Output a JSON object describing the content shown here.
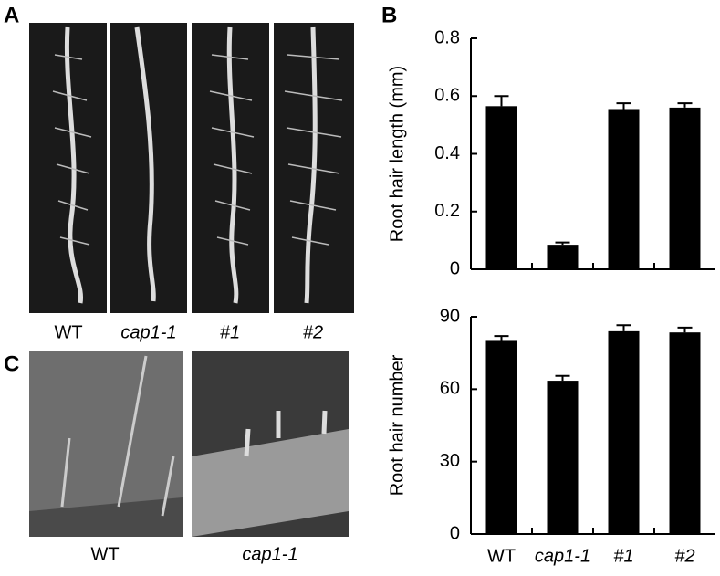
{
  "panels": [
    {
      "label": "A",
      "captions": [
        "WT",
        "cap1-1",
        "#1",
        "#2"
      ]
    },
    {
      "label": "B"
    },
    {
      "label": "C",
      "captions": [
        "WT",
        "cap1-1"
      ]
    }
  ],
  "chart_data": [
    {
      "type": "bar",
      "ylabel": "Root hair length (mm)",
      "categories": [
        null,
        null,
        null,
        null
      ],
      "values": [
        0.565,
        0.085,
        0.555,
        0.56
      ],
      "errors": [
        0.035,
        0.008,
        0.02,
        0.015
      ],
      "color": "#000000",
      "ylim": [
        0,
        0.8
      ],
      "yticks": [
        0,
        0.2,
        0.4,
        0.6,
        0.8
      ]
    },
    {
      "type": "bar",
      "ylabel": "Root hair number",
      "categories": [
        "WT",
        "cap1-1",
        "#1",
        "#2"
      ],
      "values": [
        80,
        63.5,
        84,
        83.5
      ],
      "errors": [
        2,
        2,
        2.5,
        2
      ],
      "color": "#000000",
      "ylim": [
        0,
        90
      ],
      "yticks": [
        0,
        30,
        60,
        90
      ]
    }
  ]
}
